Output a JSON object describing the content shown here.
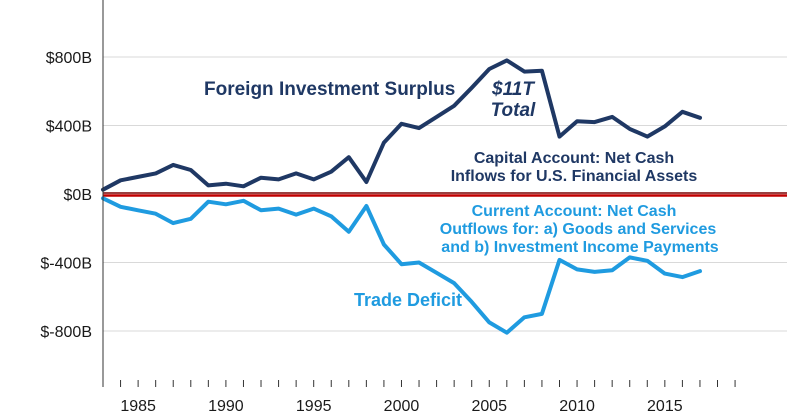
{
  "colors": {
    "surplus": "#1f3864",
    "deficit": "#1f9be0",
    "zero_line": "#c00000",
    "grid": "#d9d9d9",
    "annotation_capital": "#1f3864",
    "annotation_current": "#1f9be0",
    "axis": "#333333"
  },
  "chart_data": {
    "type": "line",
    "title": "",
    "xlabel": "",
    "ylabel": "",
    "xlim": [
      1983,
      2019
    ],
    "ylim": [
      -900,
      900
    ],
    "y_ticks": [
      800,
      400,
      0,
      -400,
      -800
    ],
    "y_tick_labels": [
      "$800B",
      "$400B",
      "$0B",
      "$-400B",
      "$-800B"
    ],
    "x_ticks": [
      1985,
      1990,
      1995,
      2000,
      2005,
      2010,
      2015
    ],
    "x_tick_labels": [
      "1985",
      "1990",
      "1995",
      "2000",
      "2005",
      "2010",
      "2015"
    ],
    "grid": true,
    "x": [
      1983,
      1984,
      1985,
      1986,
      1987,
      1988,
      1989,
      1990,
      1991,
      1992,
      1993,
      1994,
      1995,
      1996,
      1997,
      1998,
      1999,
      2000,
      2001,
      2002,
      2003,
      2004,
      2005,
      2006,
      2007,
      2008,
      2009,
      2010,
      2011,
      2012,
      2013,
      2014,
      2015,
      2016,
      2017
    ],
    "series": [
      {
        "name": "Foreign Investment Surplus",
        "role": "surplus",
        "values": [
          25,
          80,
          100,
          120,
          170,
          140,
          50,
          60,
          45,
          95,
          85,
          120,
          85,
          130,
          215,
          70,
          300,
          410,
          385,
          450,
          515,
          620,
          730,
          780,
          715,
          720,
          335,
          425,
          420,
          450,
          380,
          335,
          395,
          480,
          445
        ]
      },
      {
        "name": "Trade Deficit",
        "role": "deficit",
        "values": [
          -25,
          -75,
          -95,
          -115,
          -170,
          -145,
          -45,
          -60,
          -40,
          -95,
          -85,
          -120,
          -85,
          -130,
          -220,
          -70,
          -295,
          -410,
          -400,
          -460,
          -520,
          -630,
          -750,
          -810,
          -720,
          -700,
          -385,
          -440,
          -455,
          -445,
          -370,
          -390,
          -465,
          -485,
          -450
        ]
      }
    ],
    "annotations": {
      "total_line1": "$11T",
      "total_line2": "Total",
      "capital_line1": "Capital Account: Net Cash",
      "capital_line2": "Inflows for U.S. Financial Assets",
      "current_line1": "Current Account: Net Cash",
      "current_line2": "Outflows for: a) Goods and Services",
      "current_line3": "and b) Investment Income Payments"
    }
  }
}
